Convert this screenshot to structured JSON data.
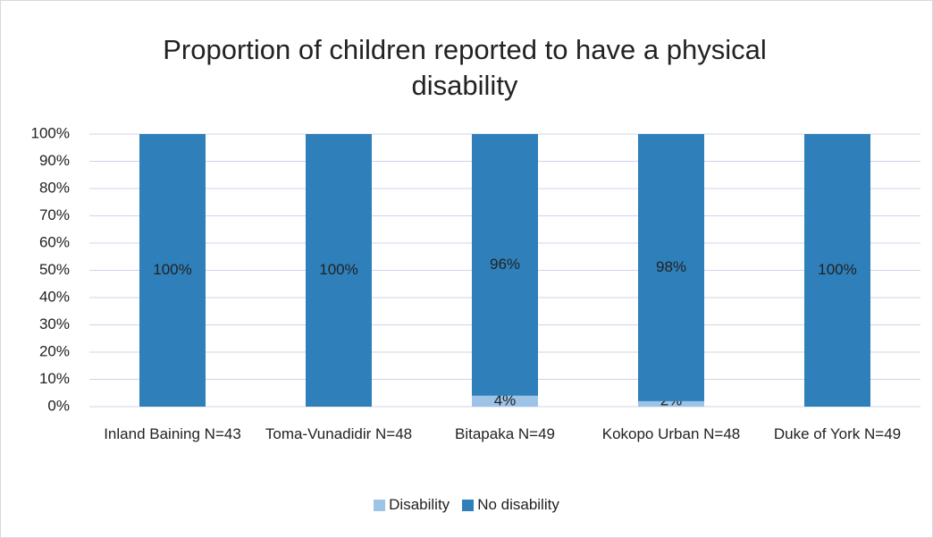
{
  "chart_data": {
    "type": "stacked_bar",
    "title": "Proportion of children reported to have a physical disability",
    "categories": [
      "Inland Baining N=43",
      "Toma-Vunadidir N=48",
      "Bitapaka N=49",
      "Kokopo Urban N=48",
      "Duke of York N=49"
    ],
    "series": [
      {
        "name": "Disability",
        "color": "#9dc3e6",
        "values": [
          0,
          0,
          4,
          2,
          0
        ],
        "value_labels": [
          null,
          null,
          "4%",
          "2%",
          null
        ]
      },
      {
        "name": "No disability",
        "color": "#2e7fba",
        "values": [
          100,
          100,
          96,
          98,
          100
        ],
        "value_labels": [
          "100%",
          "100%",
          "96%",
          "98%",
          "100%"
        ]
      }
    ],
    "ylim": [
      0,
      100
    ],
    "yticks": [
      {
        "value": 0,
        "label": "0%"
      },
      {
        "value": 10,
        "label": "10%"
      },
      {
        "value": 20,
        "label": "20%"
      },
      {
        "value": 30,
        "label": "30%"
      },
      {
        "value": 40,
        "label": "40%"
      },
      {
        "value": 50,
        "label": "50%"
      },
      {
        "value": 60,
        "label": "60%"
      },
      {
        "value": 70,
        "label": "70%"
      },
      {
        "value": 80,
        "label": "80%"
      },
      {
        "value": 90,
        "label": "90%"
      },
      {
        "value": 100,
        "label": "100%"
      }
    ],
    "grid": true,
    "legend": "bottom"
  }
}
